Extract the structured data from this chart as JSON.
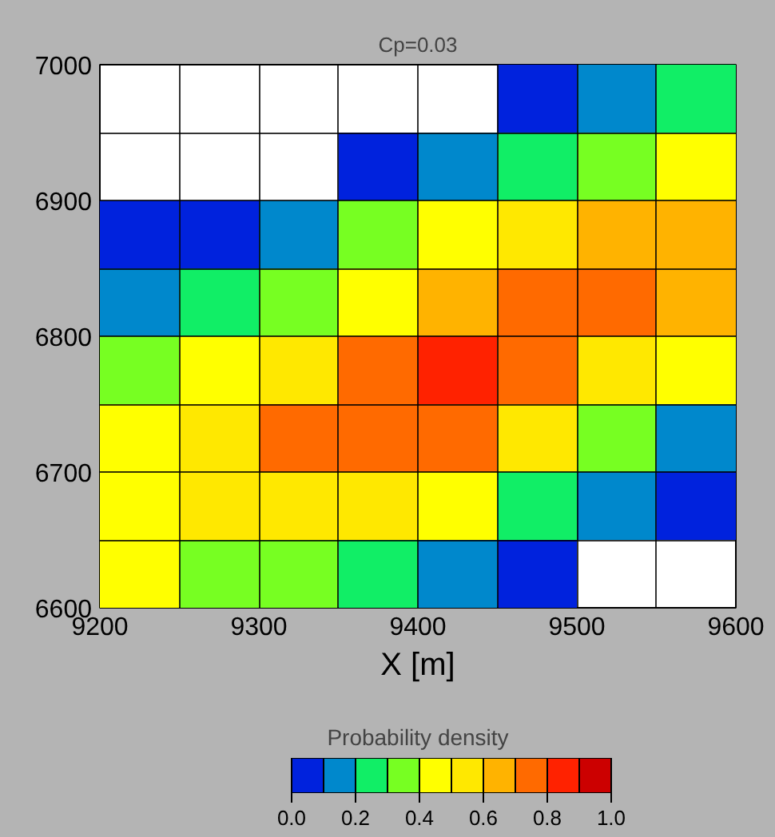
{
  "chart_data": {
    "type": "heatmap",
    "title": "Cp=0.03",
    "xlabel": "X [m]",
    "clabel": "Probability density",
    "xlim": [
      9200,
      9600
    ],
    "ylim": [
      6600,
      7000
    ],
    "xticks": [
      9200,
      {
        "value": 9250,
        "label": null
      },
      9300,
      {
        "value": 9350,
        "label": null
      },
      9400,
      {
        "value": 9450,
        "label": null
      },
      9500,
      {
        "value": 9550,
        "label": null
      },
      9600
    ],
    "yticks": [
      6600,
      {
        "value": 6650,
        "label": null
      },
      6700,
      {
        "value": 6750,
        "label": null
      },
      6800,
      {
        "value": 6850,
        "label": null
      },
      6900,
      {
        "value": 6950,
        "label": null
      },
      7000
    ],
    "cells": [
      [
        null,
        null,
        null,
        null,
        null,
        0.05,
        0.15,
        0.25
      ],
      [
        null,
        null,
        null,
        0.05,
        0.15,
        0.25,
        0.35,
        0.45
      ],
      [
        0.05,
        0.05,
        0.15,
        0.35,
        0.45,
        0.55,
        0.65,
        0.65
      ],
      [
        0.15,
        0.25,
        0.35,
        0.45,
        0.65,
        0.75,
        0.75,
        0.65
      ],
      [
        0.35,
        0.45,
        0.55,
        0.75,
        0.85,
        0.75,
        0.55,
        0.45
      ],
      [
        0.45,
        0.55,
        0.75,
        0.75,
        0.75,
        0.55,
        0.35,
        0.15
      ],
      [
        0.45,
        0.55,
        0.55,
        0.55,
        0.45,
        0.25,
        0.15,
        0.05
      ],
      [
        0.45,
        0.35,
        0.35,
        0.25,
        0.15,
        0.05,
        null,
        null
      ]
    ],
    "clim": [
      0,
      1
    ],
    "cticks": [
      {
        "value": 0,
        "label": "0.0"
      },
      {
        "value": 0.2,
        "label": "0.2"
      },
      {
        "value": 0.4,
        "label": "0.4"
      },
      {
        "value": 0.6,
        "label": "0.6"
      },
      {
        "value": 0.8,
        "label": "0.8"
      },
      {
        "value": 1,
        "label": "1.0"
      }
    ],
    "grid": true
  }
}
